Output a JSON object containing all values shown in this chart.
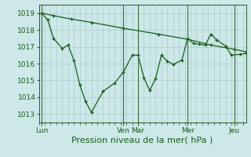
{
  "background_color": "#cce8e8",
  "grid_color": "#aacccc",
  "line_color": "#1a5c1a",
  "marker_color": "#1a5c1a",
  "xlabel": "Pression niveau de la mer( hPa )",
  "xlabel_fontsize": 8,
  "ylim": [
    1012.5,
    1019.5
  ],
  "yticks": [
    1013,
    1014,
    1015,
    1016,
    1017,
    1018,
    1019
  ],
  "day_labels": [
    "Lun",
    "Ven",
    "Mar",
    "Mer",
    "Jeu"
  ],
  "day_positions": [
    0,
    56,
    66,
    100,
    132
  ],
  "xlim": [
    -2,
    140
  ],
  "series1_x": [
    0,
    4,
    8,
    14,
    18,
    22,
    26,
    30,
    34,
    42,
    50,
    56,
    62,
    66,
    70,
    74,
    78,
    82,
    86,
    90,
    96,
    100,
    104,
    108,
    112,
    116,
    120,
    126,
    130,
    136,
    140
  ],
  "series1_y": [
    1019.0,
    1018.6,
    1017.5,
    1016.9,
    1017.1,
    1016.2,
    1014.75,
    1013.75,
    1013.1,
    1014.35,
    1014.85,
    1015.5,
    1016.5,
    1016.5,
    1015.15,
    1014.4,
    1015.1,
    1016.5,
    1016.15,
    1015.95,
    1016.2,
    1017.5,
    1017.2,
    1017.15,
    1017.1,
    1017.75,
    1017.4,
    1017.05,
    1016.5,
    1016.55,
    1016.6
  ],
  "series2_x": [
    0,
    8,
    20,
    34,
    56,
    80,
    100,
    116,
    132,
    140
  ],
  "series2_y": [
    1019.0,
    1018.85,
    1018.65,
    1018.45,
    1018.1,
    1017.75,
    1017.45,
    1017.1,
    1016.85,
    1016.7
  ]
}
